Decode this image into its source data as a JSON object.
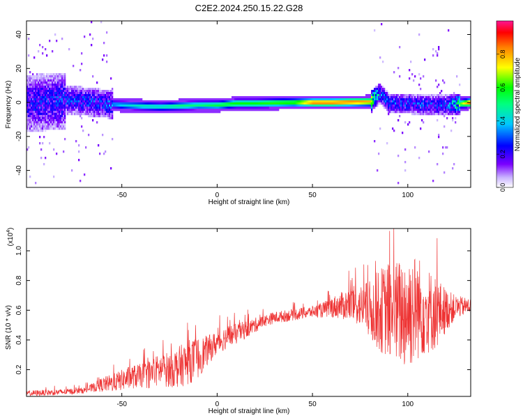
{
  "title": "C2E2.2024.250.15.22.G28",
  "chart_data": [
    {
      "type": "heatmap",
      "xlabel": "Height of straight line (km)",
      "ylabel": "Frequency (Hz)",
      "xlim": [
        -100,
        133
      ],
      "ylim": [
        -50,
        48
      ],
      "xticks": [
        -50,
        0,
        50,
        100
      ],
      "yticks": [
        -40,
        -20,
        0,
        20,
        40
      ],
      "colorbar": {
        "label": "Normalized spectral amplitude",
        "range": [
          0.0,
          1.0
        ],
        "ticks": [
          0.0,
          0.2,
          0.4,
          0.6,
          0.8
        ],
        "tick_labels": [
          "0.0",
          "0.2",
          "0.4",
          "0.6",
          "0.8"
        ]
      },
      "signal_track": {
        "description_points_x": [
          -100,
          -75,
          -60,
          -50,
          -40,
          -30,
          -20,
          -10,
          0,
          10,
          20,
          30,
          40,
          50,
          60,
          70,
          80,
          85,
          90,
          100,
          110,
          120,
          133
        ],
        "center_freq": [
          0,
          2,
          0,
          -1,
          -1.5,
          -2,
          -1.5,
          -1,
          -1,
          0,
          0,
          0.3,
          0.5,
          0.5,
          0.5,
          0.8,
          1,
          6,
          0,
          0,
          -1,
          -1,
          0.5
        ],
        "amplitude": [
          0.25,
          0.3,
          0.3,
          0.4,
          0.45,
          0.45,
          0.5,
          0.5,
          0.55,
          0.6,
          0.6,
          0.62,
          0.62,
          0.85,
          0.85,
          0.85,
          0.8,
          0.35,
          0.3,
          0.3,
          0.3,
          0.3,
          0.9
        ]
      }
    },
    {
      "type": "line",
      "xlabel": "Height of straight line (km)",
      "ylabel": "SNR (10 * v/v)",
      "scale_label": "(x10",
      "scale_exponent": "4",
      "xlim": [
        -100,
        133
      ],
      "ylim": [
        0.02,
        1.15
      ],
      "xticks": [
        -50,
        0,
        50,
        100
      ],
      "yticks": [
        0.2,
        0.4,
        0.6,
        0.8,
        1.0
      ],
      "ytick_labels": [
        "0.2",
        "0.4",
        "0.6",
        "0.8",
        "1.0"
      ],
      "series": [
        {
          "color": "#ee3333",
          "envelope_x": [
            -100,
            -80,
            -70,
            -65,
            -60,
            -55,
            -50,
            -45,
            -40,
            -35,
            -30,
            -25,
            -20,
            -15,
            -10,
            -5,
            0,
            5,
            10,
            15,
            20,
            25,
            30,
            35,
            40,
            45,
            50,
            55,
            60,
            65,
            70,
            75,
            80,
            85,
            90,
            95,
            100,
            105,
            110,
            115,
            120,
            125,
            133
          ],
          "mean": [
            0.04,
            0.05,
            0.06,
            0.08,
            0.1,
            0.11,
            0.13,
            0.15,
            0.16,
            0.17,
            0.2,
            0.2,
            0.22,
            0.25,
            0.28,
            0.33,
            0.38,
            0.42,
            0.44,
            0.47,
            0.5,
            0.53,
            0.55,
            0.56,
            0.57,
            0.58,
            0.59,
            0.6,
            0.62,
            0.63,
            0.64,
            0.63,
            0.6,
            0.6,
            0.6,
            0.58,
            0.6,
            0.62,
            0.6,
            0.58,
            0.6,
            0.62,
            0.63
          ],
          "spread": [
            0.02,
            0.02,
            0.02,
            0.03,
            0.05,
            0.06,
            0.07,
            0.08,
            0.08,
            0.1,
            0.11,
            0.12,
            0.14,
            0.15,
            0.14,
            0.1,
            0.08,
            0.08,
            0.07,
            0.06,
            0.05,
            0.04,
            0.04,
            0.04,
            0.04,
            0.04,
            0.04,
            0.05,
            0.07,
            0.09,
            0.12,
            0.14,
            0.2,
            0.28,
            0.33,
            0.36,
            0.42,
            0.36,
            0.3,
            0.25,
            0.15,
            0.08,
            0.05
          ]
        }
      ]
    }
  ]
}
